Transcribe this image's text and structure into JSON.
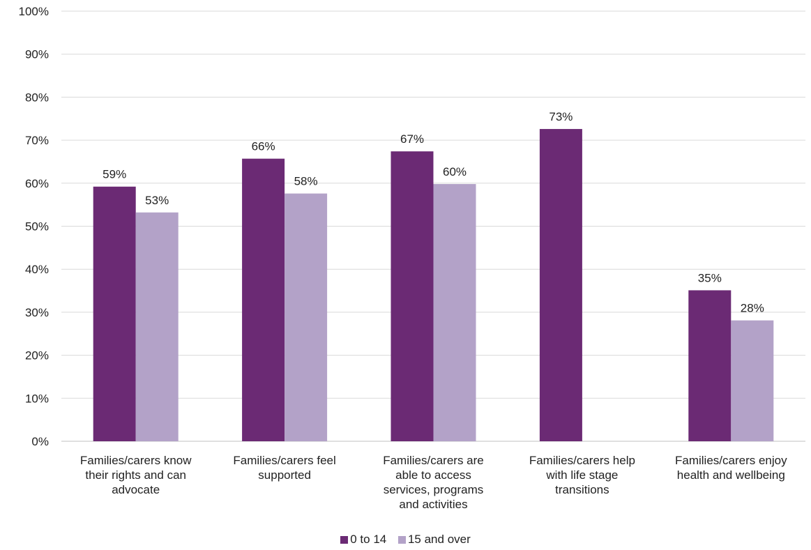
{
  "chart_data": {
    "type": "bar",
    "categories": [
      [
        "Families/carers know",
        "their rights and can",
        "advocate"
      ],
      [
        "Families/carers feel",
        "supported"
      ],
      [
        "Families/carers are",
        "able to access",
        "services, programs",
        "and activities"
      ],
      [
        "Families/carers help",
        "with life stage",
        "transitions"
      ],
      [
        "Families/carers enjoy",
        "health and wellbeing"
      ]
    ],
    "series": [
      {
        "name": "0 to 14",
        "color": "#6b2a74",
        "values": [
          59.2,
          65.7,
          67.4,
          72.6,
          35.1
        ],
        "labels": [
          "59%",
          "66%",
          "67%",
          "73%",
          "35%"
        ]
      },
      {
        "name": "15 and over",
        "color": "#b3a2c8",
        "values": [
          53.2,
          57.6,
          59.8,
          null,
          28.1
        ],
        "labels": [
          "53%",
          "58%",
          "60%",
          "",
          "28%"
        ]
      }
    ],
    "ylim": [
      0,
      100
    ],
    "yticks": [
      "0%",
      "10%",
      "20%",
      "30%",
      "40%",
      "50%",
      "60%",
      "70%",
      "80%",
      "90%",
      "100%"
    ],
    "grid": true,
    "legend_position": "bottom"
  }
}
